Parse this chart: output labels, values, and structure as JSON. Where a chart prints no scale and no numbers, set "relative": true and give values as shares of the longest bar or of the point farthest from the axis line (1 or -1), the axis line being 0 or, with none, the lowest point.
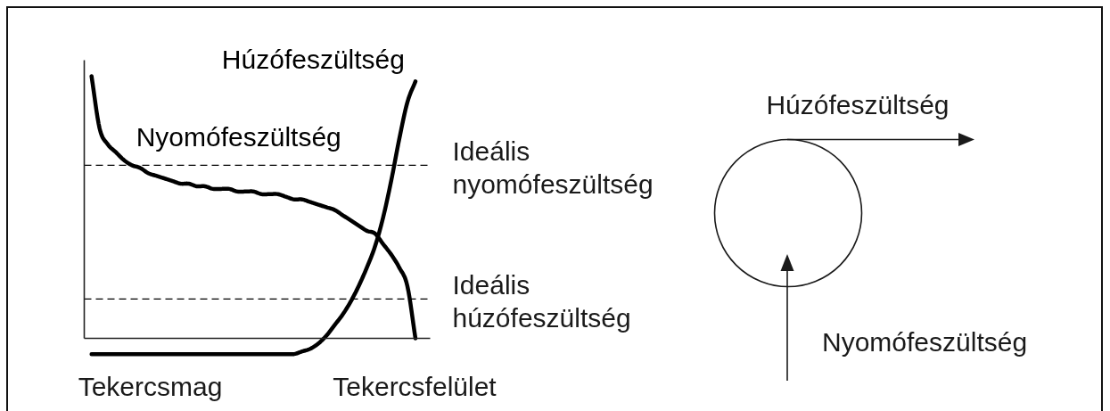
{
  "chart_data": [
    {
      "type": "line",
      "relative": true,
      "line_style": "solid",
      "categories": [
        null,
        null,
        null,
        null,
        null,
        null,
        null,
        null,
        null,
        null,
        null,
        null,
        null,
        null,
        null,
        null,
        null,
        null,
        null,
        null,
        null,
        null,
        null,
        null,
        null,
        null,
        null,
        null,
        null,
        null,
        null,
        null,
        null,
        null,
        null,
        null,
        null,
        null,
        null,
        null,
        null
      ],
      "series": [
        {
          "name": "Nyomófeszültség",
          "color": "#000000",
          "values": [
            1.0,
            0.8,
            0.74,
            0.71,
            0.68,
            0.66,
            0.65,
            0.63,
            0.62,
            0.61,
            0.6,
            0.59,
            0.59,
            0.58,
            0.58,
            0.57,
            0.57,
            0.57,
            0.56,
            0.56,
            0.56,
            0.55,
            0.55,
            0.55,
            0.54,
            0.53,
            0.53,
            0.52,
            0.51,
            0.5,
            0.49,
            0.47,
            0.45,
            0.43,
            0.41,
            0.4,
            0.36,
            0.32,
            0.27,
            0.2,
            0
          ]
        },
        {
          "name": "Húzófeszültség",
          "color": "#000000",
          "values": [
            -0.06,
            -0.06,
            -0.06,
            -0.06,
            -0.06,
            -0.06,
            -0.06,
            -0.06,
            -0.06,
            -0.06,
            -0.06,
            -0.06,
            -0.06,
            -0.06,
            -0.06,
            -0.06,
            -0.06,
            -0.06,
            -0.06,
            -0.06,
            -0.06,
            -0.06,
            -0.06,
            -0.06,
            -0.06,
            -0.06,
            -0.05,
            -0.04,
            -0.02,
            0.01,
            0.05,
            0.09,
            0.14,
            0.2,
            0.27,
            0.35,
            0.46,
            0.6,
            0.76,
            0.9,
            0.98
          ]
        }
      ],
      "ref_lines": [
        {
          "axis": "y",
          "value": 0.66,
          "label": "Ideális nyomófeszültség",
          "line_style": "dashed",
          "color": "#000000"
        },
        {
          "axis": "y",
          "value": 0.15,
          "label": "Ideális húzófeszültség",
          "line_style": "dashed",
          "color": "#000000"
        }
      ],
      "annotations": [
        "Tekercsmag",
        "Tekercsfelület"
      ]
    },
    {
      "type": "other",
      "annotations": [
        "Húzófeszültség",
        "Nyomófeszültség"
      ]
    }
  ]
}
